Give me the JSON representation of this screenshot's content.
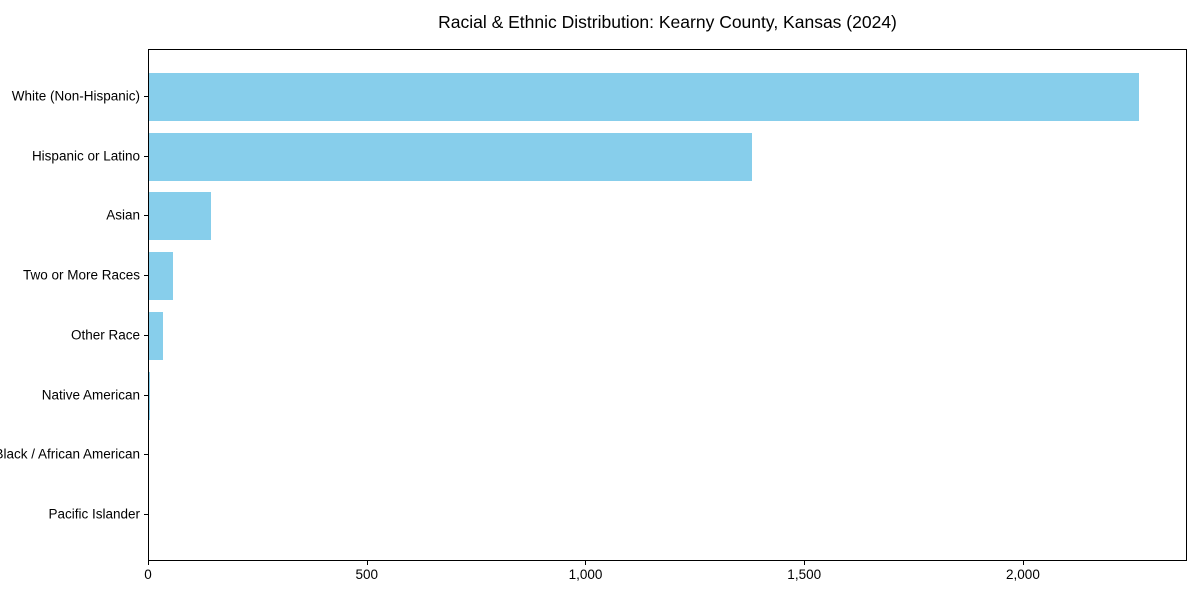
{
  "title": "Racial & Ethnic Distribution: Kearny County, Kansas (2024)",
  "colors": {
    "bar": "#87CEEB",
    "axis": "#000000",
    "text": "#000000",
    "background": "#FFFFFF"
  },
  "chart_data": {
    "type": "bar",
    "orientation": "horizontal",
    "title": "Racial & Ethnic Distribution: Kearny County, Kansas (2024)",
    "categories": [
      "White (Non-Hispanic)",
      "Hispanic or Latino",
      "Asian",
      "Two or More Races",
      "Other Race",
      "Native American",
      "Black / African American",
      "Pacific Islander"
    ],
    "values": [
      2262,
      1379,
      142,
      55,
      32,
      3,
      0,
      0
    ],
    "xlabel": "",
    "ylabel": "",
    "xlim": [
      0,
      2375
    ],
    "xticks": [
      0,
      500,
      1000,
      1500,
      2000
    ],
    "xtick_labels": [
      "0",
      "500",
      "1,000",
      "1,500",
      "2,000"
    ],
    "grid": false,
    "legend": null,
    "bar_color": "#87CEEB",
    "category_order": "largest value at top"
  }
}
